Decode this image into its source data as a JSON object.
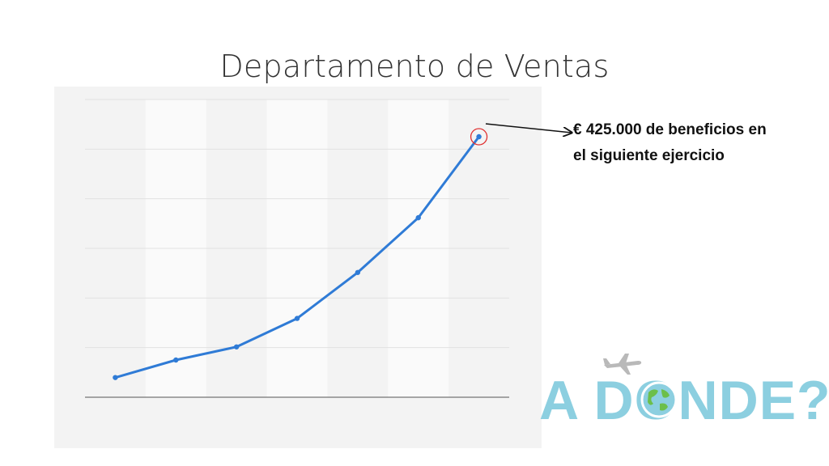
{
  "slide": {
    "title": "Departamento de Ventas",
    "annotation_line1": "€ 425.000 de beneficios en",
    "annotation_line2": "el siguiente ejercicio"
  },
  "logo": {
    "text": "A DONDE?",
    "icons": [
      "airplane-icon",
      "globe-icon"
    ],
    "color": "#8ccfe0"
  },
  "chart_data": {
    "type": "line",
    "title": "",
    "xlabel": "",
    "ylabel": "",
    "x": [
      1,
      2,
      3,
      4,
      5,
      6,
      7
    ],
    "series": [
      {
        "values": [
          45,
          85,
          115,
          180,
          285,
          410,
          595
        ]
      }
    ],
    "ylim": [
      0,
      680
    ],
    "grid": true,
    "highlight_index": 6,
    "line_color": "#2f7bd6",
    "highlight_color": "#e03030",
    "band_color": "#fafafa"
  }
}
